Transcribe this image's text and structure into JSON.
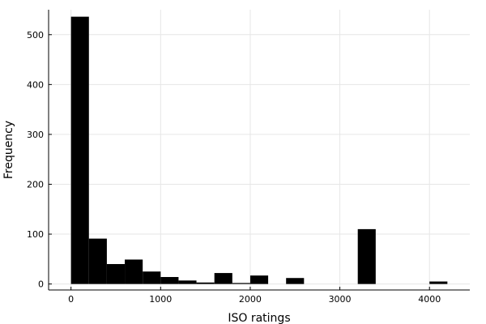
{
  "chart_data": {
    "type": "bar",
    "xlabel": "ISO ratings",
    "ylabel": "Frequency",
    "xlim": [
      -250,
      4450
    ],
    "ylim": [
      -12,
      550
    ],
    "x_ticks": [
      0,
      1000,
      2000,
      3000,
      4000
    ],
    "y_ticks": [
      0,
      100,
      200,
      300,
      400,
      500
    ],
    "grid": true,
    "legend": "none",
    "bin_width": 200,
    "bins": [
      {
        "start": 0,
        "end": 200,
        "value": 536
      },
      {
        "start": 200,
        "end": 400,
        "value": 91
      },
      {
        "start": 400,
        "end": 600,
        "value": 40
      },
      {
        "start": 600,
        "end": 800,
        "value": 49
      },
      {
        "start": 800,
        "end": 1000,
        "value": 25
      },
      {
        "start": 1000,
        "end": 1200,
        "value": 14
      },
      {
        "start": 1200,
        "end": 1400,
        "value": 7
      },
      {
        "start": 1400,
        "end": 1600,
        "value": 3
      },
      {
        "start": 1600,
        "end": 1800,
        "value": 22
      },
      {
        "start": 1800,
        "end": 2000,
        "value": 2
      },
      {
        "start": 2000,
        "end": 2200,
        "value": 17
      },
      {
        "start": 2200,
        "end": 2400,
        "value": 0
      },
      {
        "start": 2400,
        "end": 2600,
        "value": 12
      },
      {
        "start": 2600,
        "end": 2800,
        "value": 0
      },
      {
        "start": 2800,
        "end": 3000,
        "value": 0
      },
      {
        "start": 3000,
        "end": 3200,
        "value": 0
      },
      {
        "start": 3200,
        "end": 3400,
        "value": 110
      },
      {
        "start": 3400,
        "end": 3600,
        "value": 0
      },
      {
        "start": 3600,
        "end": 3800,
        "value": 0
      },
      {
        "start": 3800,
        "end": 4000,
        "value": 0
      },
      {
        "start": 4000,
        "end": 4200,
        "value": 5
      }
    ],
    "colors": {
      "bar": "#000000",
      "grid": "#e6e6e6",
      "axis": "#000000"
    }
  }
}
